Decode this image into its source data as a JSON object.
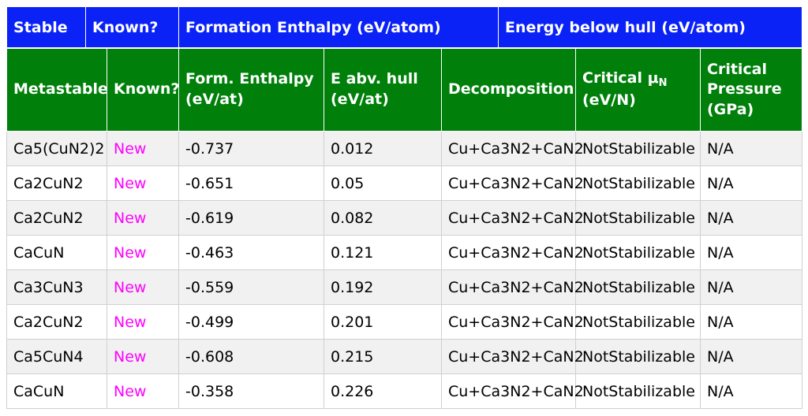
{
  "stable_header": {
    "stable": "Stable",
    "known": "Known?",
    "formation_enthalpy": "Formation Enthalpy (eV/atom)",
    "energy_below_hull": "Energy below hull (eV/atom)"
  },
  "metastable_header": {
    "metastable": "Metastable",
    "known": "Known?",
    "form_enthalpy": "Form. Enthalpy (eV/at)",
    "e_abv_hull": "E abv. hull (eV/at)",
    "decomposition": "Decomposition",
    "critical_mu_prefix": "Critical μ",
    "critical_mu_sub": "N",
    "critical_mu_unit": "(eV/N)",
    "critical_pressure": "Critical Pressure (GPa)"
  },
  "colors": {
    "stable_header_bg": "#0b22f7",
    "metastable_header_bg": "#00800a",
    "new_text": "#ff00ff"
  },
  "rows": [
    {
      "name": "Ca5(CuN2)2",
      "known": "New",
      "enthalpy": "-0.737",
      "hull": "0.012",
      "decomposition": "Cu+Ca3N2+CaN2",
      "mu": "NotStabilizable",
      "pressure": "N/A"
    },
    {
      "name": "Ca2CuN2",
      "known": "New",
      "enthalpy": "-0.651",
      "hull": "0.05",
      "decomposition": "Cu+Ca3N2+CaN2",
      "mu": "NotStabilizable",
      "pressure": "N/A"
    },
    {
      "name": "Ca2CuN2",
      "known": "New",
      "enthalpy": "-0.619",
      "hull": "0.082",
      "decomposition": "Cu+Ca3N2+CaN2",
      "mu": "NotStabilizable",
      "pressure": "N/A"
    },
    {
      "name": "CaCuN",
      "known": "New",
      "enthalpy": "-0.463",
      "hull": "0.121",
      "decomposition": "Cu+Ca3N2+CaN2",
      "mu": "NotStabilizable",
      "pressure": "N/A"
    },
    {
      "name": "Ca3CuN3",
      "known": "New",
      "enthalpy": "-0.559",
      "hull": "0.192",
      "decomposition": "Cu+Ca3N2+CaN2",
      "mu": "NotStabilizable",
      "pressure": "N/A"
    },
    {
      "name": "Ca2CuN2",
      "known": "New",
      "enthalpy": "-0.499",
      "hull": "0.201",
      "decomposition": "Cu+Ca3N2+CaN2",
      "mu": "NotStabilizable",
      "pressure": "N/A"
    },
    {
      "name": "Ca5CuN4",
      "known": "New",
      "enthalpy": "-0.608",
      "hull": "0.215",
      "decomposition": "Cu+Ca3N2+CaN2",
      "mu": "NotStabilizable",
      "pressure": "N/A"
    },
    {
      "name": "CaCuN",
      "known": "New",
      "enthalpy": "-0.358",
      "hull": "0.226",
      "decomposition": "Cu+Ca3N2+CaN2",
      "mu": "NotStabilizable",
      "pressure": "N/A"
    }
  ]
}
